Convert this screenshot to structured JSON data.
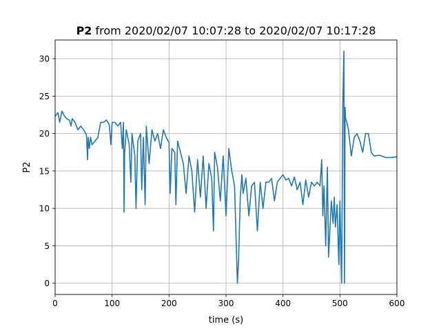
{
  "chart_data": {
    "type": "line",
    "title_bold": "P2",
    "title_rest": " from 2020/02/07 10:07:28 to 2020/02/07 10:17:28",
    "xlabel": "time (s)",
    "ylabel": "P2",
    "xlim": [
      0,
      600
    ],
    "ylim": [
      -1.5,
      32.5
    ],
    "xticks": [
      0,
      100,
      200,
      300,
      400,
      500,
      600
    ],
    "yticks": [
      0,
      5,
      10,
      15,
      20,
      25,
      30
    ],
    "grid": true,
    "color": "#1f77b4",
    "series": [
      {
        "x": [
          0,
          5,
          8,
          12,
          15,
          20,
          25,
          28,
          30,
          35,
          40,
          45,
          50,
          55,
          57,
          58,
          60,
          62,
          65,
          70,
          75,
          80,
          85,
          90,
          95,
          98,
          100,
          105,
          110,
          115,
          118,
          120,
          121,
          122,
          125,
          130,
          133,
          135,
          140,
          142,
          145,
          150,
          152,
          155,
          158,
          160,
          165,
          170,
          175,
          180,
          185,
          190,
          195,
          200,
          202,
          205,
          210,
          212,
          215,
          220,
          225,
          230,
          235,
          240,
          245,
          250,
          255,
          260,
          265,
          270,
          275,
          278,
          280,
          285,
          290,
          295,
          300,
          305,
          310,
          315,
          318,
          320,
          322,
          325,
          328,
          330,
          335,
          340,
          345,
          350,
          355,
          360,
          365,
          370,
          375,
          380,
          385,
          390,
          395,
          400,
          405,
          410,
          415,
          420,
          425,
          430,
          435,
          440,
          445,
          450,
          455,
          460,
          465,
          468,
          470,
          472,
          475,
          478,
          480,
          485,
          488,
          490,
          492,
          495,
          498,
          500,
          503,
          505,
          507,
          508,
          509,
          510,
          512,
          515,
          520,
          525,
          530,
          535,
          540,
          545,
          550,
          555,
          560,
          570,
          580,
          590,
          600
        ],
        "y": [
          22.3,
          22.8,
          21.5,
          23.0,
          22.5,
          22.0,
          21.8,
          21.0,
          22.0,
          21.5,
          20.5,
          21.0,
          20.5,
          19.8,
          16.5,
          19.5,
          18.0,
          19.5,
          18.5,
          19.0,
          19.5,
          21.5,
          21.5,
          21.8,
          21.2,
          18.5,
          21.5,
          21.5,
          21.0,
          21.5,
          18.0,
          21.5,
          9.5,
          17.5,
          20.5,
          18.5,
          13.5,
          20.0,
          17.0,
          10.0,
          19.0,
          20.0,
          12.5,
          19.5,
          10.5,
          21.0,
          16.0,
          20.5,
          19.0,
          20.0,
          18.0,
          20.5,
          19.5,
          18.8,
          12.0,
          18.0,
          17.5,
          10.5,
          19.0,
          17.5,
          16.0,
          12.0,
          17.0,
          15.0,
          9.5,
          16.5,
          11.5,
          17.0,
          10.0,
          16.0,
          14.0,
          7.0,
          17.5,
          15.5,
          11.0,
          17.0,
          9.0,
          18.0,
          15.0,
          13.0,
          5.0,
          0.0,
          3.0,
          11.5,
          14.5,
          12.0,
          14.0,
          9.0,
          13.0,
          13.5,
          7.0,
          13.5,
          10.0,
          13.5,
          13.5,
          14.0,
          11.0,
          13.5,
          14.0,
          14.5,
          13.8,
          14.0,
          13.0,
          14.2,
          12.5,
          13.5,
          10.5,
          13.8,
          11.5,
          13.5,
          13.0,
          13.5,
          13.0,
          16.5,
          9.0,
          13.0,
          5.0,
          15.5,
          3.5,
          11.0,
          8.0,
          11.5,
          7.5,
          10.5,
          2.5,
          11.0,
          0.0,
          24.0,
          31.0,
          0.0,
          23.5,
          22.0,
          21.5,
          20.5,
          17.0,
          19.5,
          20.0,
          19.0,
          17.5,
          20.0,
          20.0,
          17.5,
          17.0,
          17.1,
          16.8,
          16.8,
          16.9
        ]
      }
    ]
  }
}
